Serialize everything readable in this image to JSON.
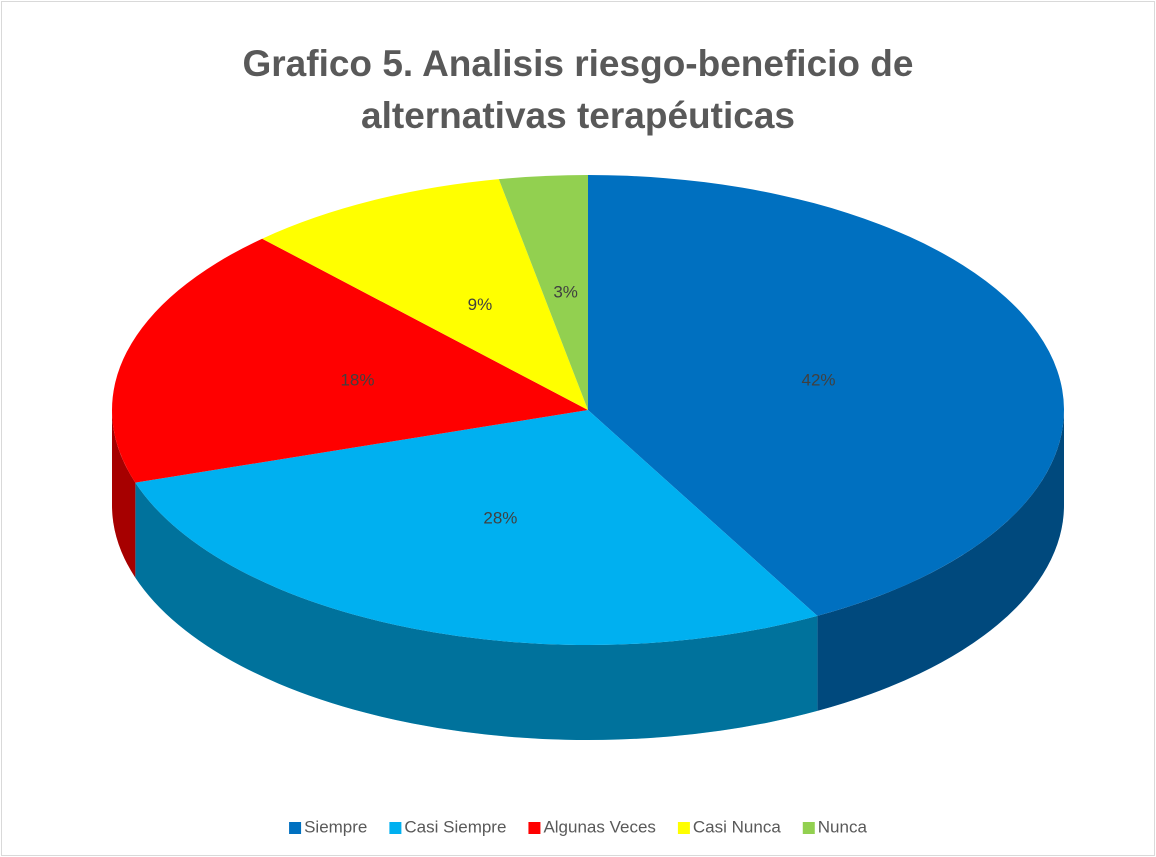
{
  "chart_data": {
    "type": "pie3d",
    "title": "Grafico 5. Analisis riesgo-beneficio de alternativas terapéuticas",
    "categories": [
      "Siempre",
      "Casi Siempre",
      "Algunas Veces",
      "Casi Nunca",
      "Nunca"
    ],
    "values": [
      42,
      28,
      18,
      9,
      3
    ],
    "value_labels": [
      "42%",
      "28%",
      "18%",
      "9%",
      "3%"
    ],
    "colors": [
      "#0070c0",
      "#00b0f0",
      "#ff0000",
      "#ffff00",
      "#92d050"
    ],
    "legend": "bottom"
  }
}
